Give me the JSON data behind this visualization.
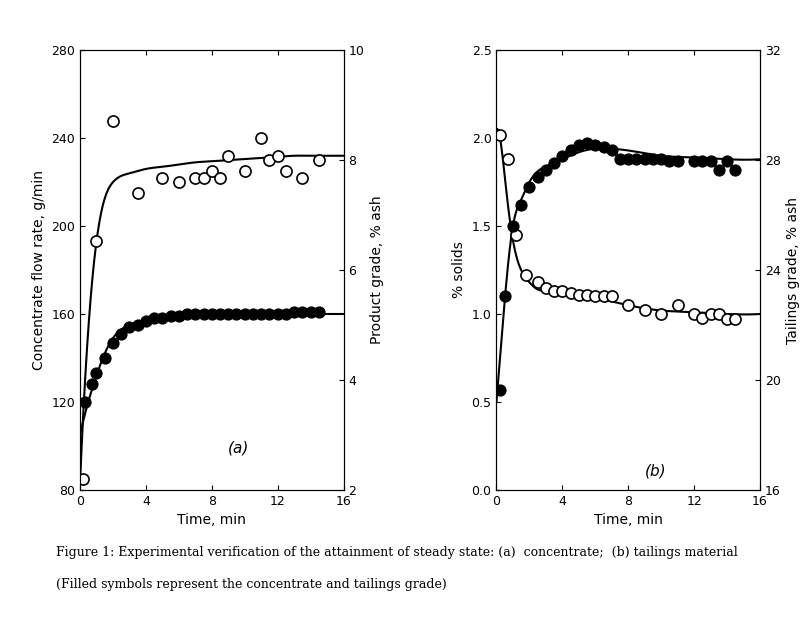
{
  "panel_a": {
    "title": "(a)",
    "xlabel": "Time, min",
    "ylabel_left": "Concentrate flow rate, g/min",
    "ylabel_right": "Product grade, % ash",
    "xlim": [
      0,
      16
    ],
    "ylim_left": [
      80,
      280
    ],
    "ylim_right": [
      2,
      10
    ],
    "yticks_left": [
      80,
      120,
      160,
      200,
      240,
      280
    ],
    "yticks_right": [
      2,
      4,
      6,
      8,
      10
    ],
    "xticks": [
      0,
      4,
      8,
      12,
      16
    ],
    "open_circles_x": [
      0.2,
      1.0,
      2.0,
      3.5,
      5.0,
      6.0,
      7.0,
      7.5,
      8.0,
      8.5,
      9.0,
      10.0,
      11.0,
      11.5,
      12.0,
      12.5,
      13.5,
      14.5
    ],
    "open_circles_y": [
      85,
      193,
      248,
      215,
      222,
      220,
      222,
      222,
      225,
      222,
      232,
      225,
      240,
      230,
      232,
      225,
      222,
      230
    ],
    "filled_circles_x": [
      0.3,
      0.7,
      1.0,
      1.5,
      2.0,
      2.5,
      3.0,
      3.5,
      4.0,
      4.5,
      5.0,
      5.5,
      6.0,
      6.5,
      7.0,
      7.5,
      8.0,
      8.5,
      9.0,
      9.5,
      10.0,
      10.5,
      11.0,
      11.5,
      12.0,
      12.5,
      13.0,
      13.5,
      14.0,
      14.5
    ],
    "filled_circles_y": [
      120,
      128,
      133,
      140,
      147,
      151,
      154,
      155,
      157,
      158,
      158,
      159,
      159,
      160,
      160,
      160,
      160,
      160,
      160,
      160,
      160,
      160,
      160,
      160,
      160,
      160,
      161,
      161,
      161,
      161
    ],
    "curve_open_x": [
      0.0,
      1.0,
      2.0,
      3.0,
      4.0,
      5.0,
      6.0,
      7.0,
      8.0,
      9.0,
      10.0,
      11.0,
      12.0,
      13.0,
      14.0,
      15.0,
      16.0
    ],
    "curve_open_y": [
      83,
      193,
      220,
      224,
      226,
      227,
      228,
      229,
      229.5,
      230,
      230.5,
      231,
      231.5,
      232,
      232,
      232,
      232
    ],
    "curve_filled_x": [
      0.0,
      0.5,
      1.0,
      1.5,
      2.0,
      3.0,
      4.0,
      5.0,
      6.0,
      8.0,
      10.0,
      12.0,
      14.0,
      16.0
    ],
    "curve_filled_y": [
      105,
      120,
      132,
      142,
      149,
      155,
      157,
      158.5,
      159.5,
      160,
      160,
      160,
      160,
      160
    ]
  },
  "panel_b": {
    "title": "(b)",
    "xlabel": "Time, min",
    "ylabel_left": "% solids",
    "ylabel_right": "Tailings grade, % ash",
    "xlim": [
      0,
      16
    ],
    "ylim_left": [
      0.0,
      2.5
    ],
    "ylim_right": [
      16,
      32
    ],
    "yticks_left": [
      0.0,
      0.5,
      1.0,
      1.5,
      2.0,
      2.5
    ],
    "yticks_right": [
      16,
      20,
      24,
      28,
      32
    ],
    "xticks": [
      0,
      4,
      8,
      12,
      16
    ],
    "open_circles_x": [
      0.2,
      0.7,
      1.2,
      1.8,
      2.5,
      3.0,
      3.5,
      4.0,
      4.5,
      5.0,
      5.5,
      6.0,
      6.5,
      7.0,
      8.0,
      9.0,
      10.0,
      11.0,
      12.0,
      12.5,
      13.0,
      13.5,
      14.0,
      14.5
    ],
    "open_circles_y": [
      2.02,
      1.88,
      1.45,
      1.22,
      1.18,
      1.15,
      1.13,
      1.13,
      1.12,
      1.11,
      1.11,
      1.1,
      1.1,
      1.1,
      1.05,
      1.02,
      1.0,
      1.05,
      1.0,
      0.98,
      1.0,
      1.0,
      0.97,
      0.97
    ],
    "filled_circles_x": [
      0.2,
      0.5,
      1.0,
      1.5,
      2.0,
      2.5,
      3.0,
      3.5,
      4.0,
      4.5,
      5.0,
      5.5,
      6.0,
      6.5,
      7.0,
      7.5,
      8.0,
      8.5,
      9.0,
      9.5,
      10.0,
      10.5,
      11.0,
      12.0,
      12.5,
      13.0,
      13.5,
      14.0,
      14.5
    ],
    "filled_circles_y": [
      0.57,
      1.1,
      1.5,
      1.62,
      1.72,
      1.78,
      1.82,
      1.86,
      1.9,
      1.93,
      1.96,
      1.97,
      1.96,
      1.95,
      1.93,
      1.88,
      1.88,
      1.88,
      1.88,
      1.88,
      1.88,
      1.87,
      1.87,
      1.87,
      1.87,
      1.87,
      1.82,
      1.87,
      1.82
    ],
    "curve_open_x": [
      0.0,
      0.3,
      0.6,
      1.0,
      1.5,
      2.0,
      2.5,
      3.0,
      4.0,
      5.0,
      6.0,
      8.0,
      10.0,
      12.0,
      14.0,
      16.0
    ],
    "curve_open_y": [
      2.05,
      1.95,
      1.7,
      1.42,
      1.25,
      1.18,
      1.14,
      1.13,
      1.11,
      1.1,
      1.09,
      1.05,
      1.02,
      1.01,
      1.0,
      1.0
    ],
    "curve_filled_x": [
      0.0,
      0.3,
      0.6,
      1.0,
      1.5,
      2.0,
      3.0,
      4.0,
      5.0,
      6.0,
      7.0,
      8.0,
      10.0,
      12.0,
      14.0,
      16.0
    ],
    "curve_filled_y": [
      0.5,
      0.85,
      1.18,
      1.5,
      1.65,
      1.75,
      1.84,
      1.88,
      1.92,
      1.94,
      1.94,
      1.93,
      1.9,
      1.89,
      1.88,
      1.88
    ]
  },
  "figure_caption_line1": "Figure 1: Experimental verification of the attainment of steady state: (a)  concentrate;  (b) tailings material",
  "figure_caption_line2": "(Filled symbols represent the concentrate and tailings grade)",
  "background_color": "#ffffff"
}
